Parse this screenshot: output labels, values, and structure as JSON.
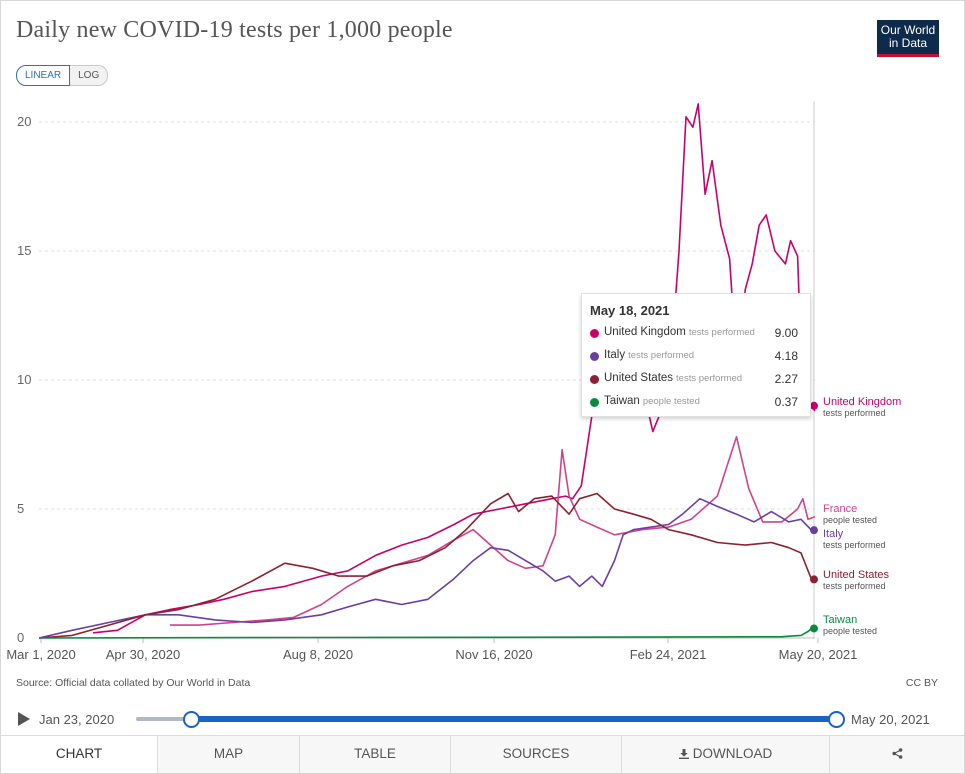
{
  "header": {
    "title": "Daily new COVID-19 tests per 1,000 people",
    "logo_line1": "Our World",
    "logo_line2": "in Data"
  },
  "scale_toggle": {
    "linear": "LINEAR",
    "log": "LOG",
    "selected": "LINEAR"
  },
  "chart_data": {
    "type": "line",
    "title": "Daily new COVID-19 tests per 1,000 people",
    "xlabel": "",
    "ylabel": "",
    "x_tick_labels": [
      "Mar 1, 2020",
      "Apr 30, 2020",
      "Aug 8, 2020",
      "Nov 16, 2020",
      "Feb 24, 2021",
      "May 20, 2021"
    ],
    "y_tick_labels": [
      "0",
      "5",
      "10",
      "15",
      "20"
    ],
    "xlim": [
      "2020-03-01",
      "2021-05-20"
    ],
    "ylim": [
      0,
      21
    ],
    "grid": "horizontal-dashed",
    "legend": "end-labels-right",
    "series": [
      {
        "name": "United Kingdom",
        "sub": "tests performed",
        "color": "#c8006b",
        "points": [
          [
            "2020-04-01",
            0.2
          ],
          [
            "2020-04-15",
            0.3
          ],
          [
            "2020-05-01",
            0.9
          ],
          [
            "2020-05-15",
            1.1
          ],
          [
            "2020-06-01",
            1.3
          ],
          [
            "2020-06-15",
            1.5
          ],
          [
            "2020-07-01",
            1.8
          ],
          [
            "2020-07-20",
            2.0
          ],
          [
            "2020-08-10",
            2.4
          ],
          [
            "2020-08-25",
            2.6
          ],
          [
            "2020-09-10",
            3.2
          ],
          [
            "2020-09-25",
            3.6
          ],
          [
            "2020-10-10",
            3.9
          ],
          [
            "2020-10-25",
            4.4
          ],
          [
            "2020-11-05",
            4.8
          ],
          [
            "2020-11-20",
            5.0
          ],
          [
            "2020-12-05",
            5.2
          ],
          [
            "2020-12-20",
            5.4
          ],
          [
            "2020-12-28",
            5.5
          ],
          [
            "2021-01-01",
            5.4
          ],
          [
            "2021-01-06",
            5.9
          ],
          [
            "2021-01-12",
            8.6
          ],
          [
            "2021-01-20",
            9.1
          ],
          [
            "2021-01-28",
            10.0
          ],
          [
            "2021-02-05",
            11.0
          ],
          [
            "2021-02-12",
            9.2
          ],
          [
            "2021-02-16",
            8.0
          ],
          [
            "2021-02-22",
            9.0
          ],
          [
            "2021-02-27",
            11.3
          ],
          [
            "2021-03-03",
            15.0
          ],
          [
            "2021-03-07",
            20.2
          ],
          [
            "2021-03-11",
            19.8
          ],
          [
            "2021-03-14",
            20.7
          ],
          [
            "2021-03-18",
            17.2
          ],
          [
            "2021-03-22",
            18.5
          ],
          [
            "2021-03-27",
            16.0
          ],
          [
            "2021-04-01",
            14.7
          ],
          [
            "2021-04-06",
            9.5
          ],
          [
            "2021-04-10",
            13.5
          ],
          [
            "2021-04-14",
            14.5
          ],
          [
            "2021-04-18",
            16.0
          ],
          [
            "2021-04-22",
            16.4
          ],
          [
            "2021-04-27",
            15.0
          ],
          [
            "2021-05-03",
            14.5
          ],
          [
            "2021-05-06",
            15.4
          ],
          [
            "2021-05-10",
            14.8
          ],
          [
            "2021-05-13",
            9.0
          ],
          [
            "2021-05-17",
            9.0
          ],
          [
            "2021-05-18",
            9.0
          ],
          [
            "2021-05-20",
            8.8
          ]
        ]
      },
      {
        "name": "France",
        "sub": "people tested",
        "color": "#d1428a",
        "points": [
          [
            "2020-05-15",
            0.5
          ],
          [
            "2020-06-01",
            0.5
          ],
          [
            "2020-06-20",
            0.6
          ],
          [
            "2020-07-10",
            0.7
          ],
          [
            "2020-07-25",
            0.8
          ],
          [
            "2020-08-10",
            1.3
          ],
          [
            "2020-08-25",
            2.0
          ],
          [
            "2020-09-10",
            2.6
          ],
          [
            "2020-09-25",
            2.9
          ],
          [
            "2020-10-10",
            3.2
          ],
          [
            "2020-10-25",
            3.8
          ],
          [
            "2020-11-05",
            4.2
          ],
          [
            "2020-11-15",
            3.6
          ],
          [
            "2020-11-25",
            3.0
          ],
          [
            "2020-12-05",
            2.7
          ],
          [
            "2020-12-15",
            2.8
          ],
          [
            "2020-12-22",
            4.0
          ],
          [
            "2020-12-26",
            7.3
          ],
          [
            "2020-12-30",
            5.5
          ],
          [
            "2021-01-05",
            4.6
          ],
          [
            "2021-01-15",
            4.3
          ],
          [
            "2021-01-25",
            4.0
          ],
          [
            "2021-02-10",
            4.2
          ],
          [
            "2021-02-25",
            4.3
          ],
          [
            "2021-03-10",
            4.6
          ],
          [
            "2021-03-25",
            5.5
          ],
          [
            "2021-04-05",
            7.8
          ],
          [
            "2021-04-12",
            5.8
          ],
          [
            "2021-04-20",
            4.5
          ],
          [
            "2021-05-01",
            4.5
          ],
          [
            "2021-05-10",
            5.0
          ],
          [
            "2021-05-13",
            5.4
          ],
          [
            "2021-05-16",
            4.6
          ],
          [
            "2021-05-20",
            4.7
          ]
        ]
      },
      {
        "name": "Italy",
        "sub": "tests performed",
        "color": "#6b3fa0",
        "points": [
          [
            "2020-03-01",
            0.0
          ],
          [
            "2020-03-20",
            0.3
          ],
          [
            "2020-04-10",
            0.6
          ],
          [
            "2020-05-01",
            0.9
          ],
          [
            "2020-05-20",
            0.9
          ],
          [
            "2020-06-10",
            0.7
          ],
          [
            "2020-07-01",
            0.6
          ],
          [
            "2020-07-20",
            0.7
          ],
          [
            "2020-08-10",
            0.9
          ],
          [
            "2020-08-25",
            1.2
          ],
          [
            "2020-09-10",
            1.5
          ],
          [
            "2020-09-25",
            1.3
          ],
          [
            "2020-10-10",
            1.5
          ],
          [
            "2020-10-25",
            2.3
          ],
          [
            "2020-11-05",
            3.0
          ],
          [
            "2020-11-15",
            3.5
          ],
          [
            "2020-11-25",
            3.4
          ],
          [
            "2020-12-05",
            3.0
          ],
          [
            "2020-12-15",
            2.6
          ],
          [
            "2020-12-22",
            2.2
          ],
          [
            "2020-12-30",
            2.4
          ],
          [
            "2021-01-05",
            2.0
          ],
          [
            "2021-01-12",
            2.4
          ],
          [
            "2021-01-18",
            2.0
          ],
          [
            "2021-01-25",
            3.0
          ],
          [
            "2021-01-30",
            4.0
          ],
          [
            "2021-02-05",
            4.2
          ],
          [
            "2021-02-15",
            4.3
          ],
          [
            "2021-02-25",
            4.4
          ],
          [
            "2021-03-05",
            4.8
          ],
          [
            "2021-03-15",
            5.4
          ],
          [
            "2021-03-25",
            5.1
          ],
          [
            "2021-04-05",
            4.8
          ],
          [
            "2021-04-15",
            4.5
          ],
          [
            "2021-04-25",
            4.9
          ],
          [
            "2021-05-05",
            4.5
          ],
          [
            "2021-05-12",
            4.6
          ],
          [
            "2021-05-18",
            4.18
          ],
          [
            "2021-05-20",
            4.2
          ]
        ]
      },
      {
        "name": "United States",
        "sub": "tests performed",
        "color": "#8b2232",
        "points": [
          [
            "2020-03-01",
            0.0
          ],
          [
            "2020-03-20",
            0.1
          ],
          [
            "2020-04-10",
            0.5
          ],
          [
            "2020-05-01",
            0.9
          ],
          [
            "2020-05-20",
            1.1
          ],
          [
            "2020-06-10",
            1.5
          ],
          [
            "2020-07-01",
            2.2
          ],
          [
            "2020-07-20",
            2.9
          ],
          [
            "2020-08-05",
            2.7
          ],
          [
            "2020-08-20",
            2.4
          ],
          [
            "2020-09-05",
            2.4
          ],
          [
            "2020-09-20",
            2.8
          ],
          [
            "2020-10-05",
            3.0
          ],
          [
            "2020-10-20",
            3.5
          ],
          [
            "2020-11-01",
            4.2
          ],
          [
            "2020-11-15",
            5.2
          ],
          [
            "2020-11-25",
            5.6
          ],
          [
            "2020-12-01",
            4.9
          ],
          [
            "2020-12-10",
            5.4
          ],
          [
            "2020-12-20",
            5.5
          ],
          [
            "2020-12-30",
            4.8
          ],
          [
            "2021-01-05",
            5.4
          ],
          [
            "2021-01-15",
            5.6
          ],
          [
            "2021-01-25",
            5.0
          ],
          [
            "2021-02-05",
            4.8
          ],
          [
            "2021-02-15",
            4.6
          ],
          [
            "2021-02-25",
            4.2
          ],
          [
            "2021-03-10",
            4.0
          ],
          [
            "2021-03-25",
            3.7
          ],
          [
            "2021-04-10",
            3.6
          ],
          [
            "2021-04-25",
            3.7
          ],
          [
            "2021-05-05",
            3.5
          ],
          [
            "2021-05-12",
            3.3
          ],
          [
            "2021-05-18",
            2.27
          ],
          [
            "2021-05-20",
            2.3
          ]
        ]
      },
      {
        "name": "Taiwan",
        "sub": "people tested",
        "color": "#0a8a3c",
        "points": [
          [
            "2020-03-01",
            0.0
          ],
          [
            "2020-08-01",
            0.02
          ],
          [
            "2021-01-01",
            0.03
          ],
          [
            "2021-05-01",
            0.05
          ],
          [
            "2021-05-12",
            0.1
          ],
          [
            "2021-05-16",
            0.25
          ],
          [
            "2021-05-18",
            0.37
          ],
          [
            "2021-05-20",
            0.45
          ]
        ]
      }
    ]
  },
  "tooltip": {
    "date": "May 18, 2021",
    "rows": [
      {
        "name": "United Kingdom",
        "sub": "tests performed",
        "value": "9.00",
        "color": "#c8006b"
      },
      {
        "name": "Italy",
        "sub": "tests performed",
        "value": "4.18",
        "color": "#6b3fa0"
      },
      {
        "name": "United States",
        "sub": "tests performed",
        "value": "2.27",
        "color": "#8b2232"
      },
      {
        "name": "Taiwan",
        "sub": "people tested",
        "value": "0.37",
        "color": "#0a8a3c"
      }
    ]
  },
  "footer": {
    "source": "Source: Official data collated by Our World in Data",
    "license": "CC BY"
  },
  "timeline": {
    "start": "Jan 23, 2020",
    "end": "May 20, 2021"
  },
  "tabs": {
    "chart": "CHART",
    "map": "MAP",
    "table": "TABLE",
    "sources": "SOURCES",
    "download": "DOWNLOAD"
  }
}
